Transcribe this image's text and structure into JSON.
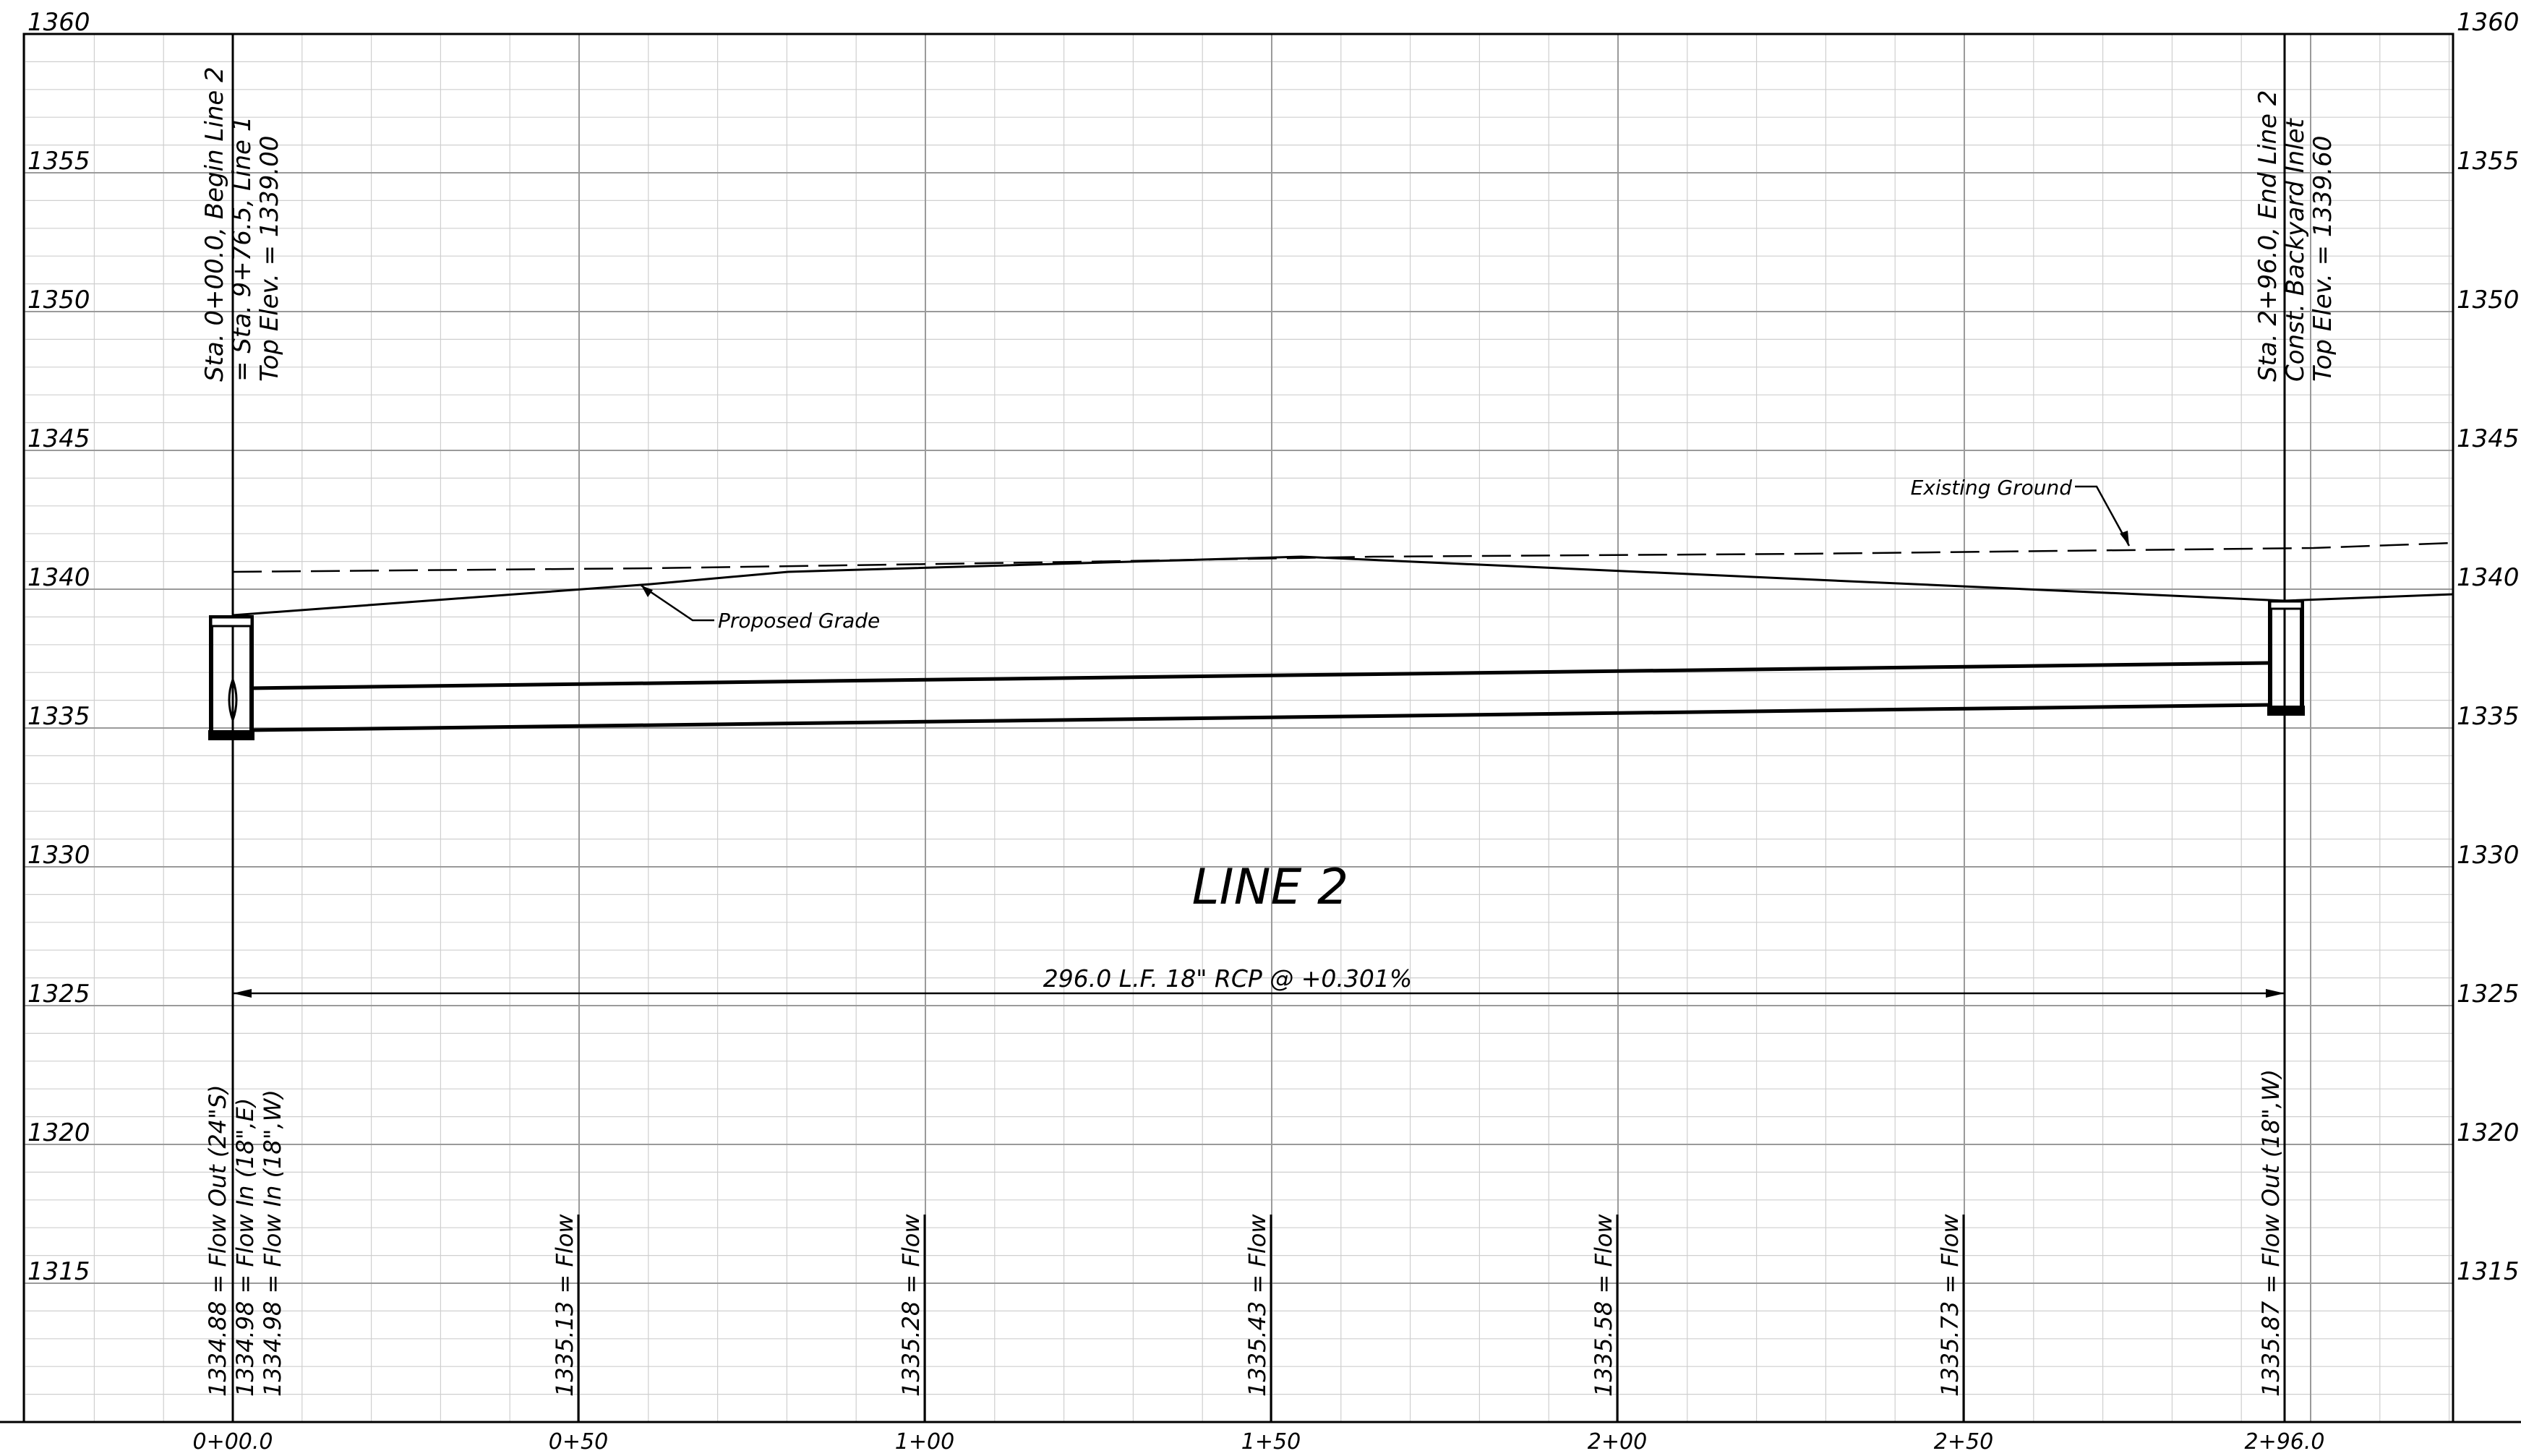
{
  "profile": {
    "title": "LINE 2",
    "pipe_note": "296.0 L.F. 18\" RCP @ +0.301%"
  },
  "elevations_left": [
    "1360",
    "1355",
    "1350",
    "1345",
    "1340",
    "1335",
    "1330",
    "1325",
    "1320",
    "1315"
  ],
  "elevations_right": [
    "1360",
    "1355",
    "1350",
    "1345",
    "1340",
    "1335",
    "1330",
    "1325",
    "1320",
    "1315"
  ],
  "stations": [
    "0+00.0",
    "0+50",
    "1+00",
    "1+50",
    "2+00",
    "2+50",
    "2+96.0"
  ],
  "structure_start": {
    "line1": "Sta. 0+00.0, Begin Line 2",
    "line2": "= Sta. 9+76.5, Line 1",
    "line3": "Top Elev. = 1339.00"
  },
  "structure_end": {
    "line1": "Sta. 2+96.0, End Line 2",
    "line2": "Const. Backyard Inlet",
    "line3": "Top Elev. = 1339.60"
  },
  "callouts": {
    "existing_ground": "Existing Ground",
    "proposed_grade": "Proposed Grade"
  },
  "flowlines": {
    "start": [
      "1334.88 = Flow Out (24\"S)",
      "1334.98 = Flow In (18\",E)",
      "1334.98 = Flow In (18\",W)"
    ],
    "f050": "1335.13 = Flow",
    "f100": "1335.28 = Flow",
    "f150": "1335.43 = Flow",
    "f200": "1335.58 = Flow",
    "f250": "1335.73 = Flow",
    "end": "1335.87 = Flow Out (18\",W)"
  }
}
